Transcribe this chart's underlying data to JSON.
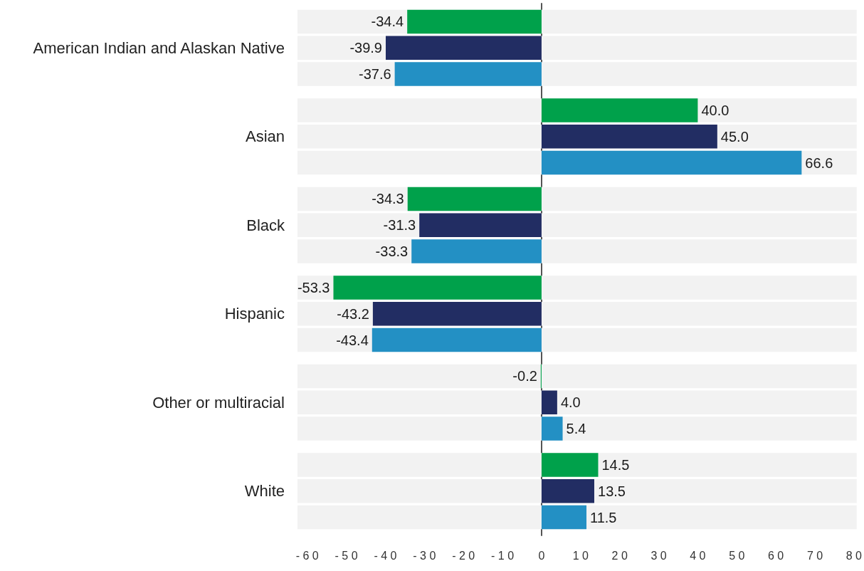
{
  "chart_data": {
    "type": "bar",
    "orientation": "horizontal",
    "categories": [
      "American Indian and Alaskan Native",
      "Asian",
      "Black",
      "Hispanic",
      "Other or multiracial",
      "White"
    ],
    "series": [
      {
        "color": "#00a14b",
        "values": [
          -34.4,
          40.0,
          -34.3,
          -53.3,
          -0.2,
          14.5
        ],
        "value_labels": [
          "-34.4",
          "40.0",
          "-34.3",
          "-53.3",
          "-0.2",
          "14.5"
        ]
      },
      {
        "color": "#222d63",
        "values": [
          -39.9,
          45.0,
          -31.3,
          -43.2,
          4.0,
          13.5
        ],
        "value_labels": [
          "-39.9",
          "45.0",
          "-31.3",
          "-43.2",
          "4.0",
          "13.5"
        ]
      },
      {
        "color": "#2390c4",
        "values": [
          -37.6,
          66.6,
          -33.3,
          -43.4,
          5.4,
          11.5
        ],
        "value_labels": [
          "-37.6",
          "66.6",
          "-33.3",
          "-43.4",
          "5.4",
          "11.5"
        ]
      }
    ],
    "xlim": [
      -62.5,
      80.7
    ],
    "xticks": [
      -60,
      -50,
      -40,
      -30,
      -20,
      -10,
      0,
      10,
      20,
      30,
      40,
      50,
      60,
      70,
      80
    ]
  }
}
